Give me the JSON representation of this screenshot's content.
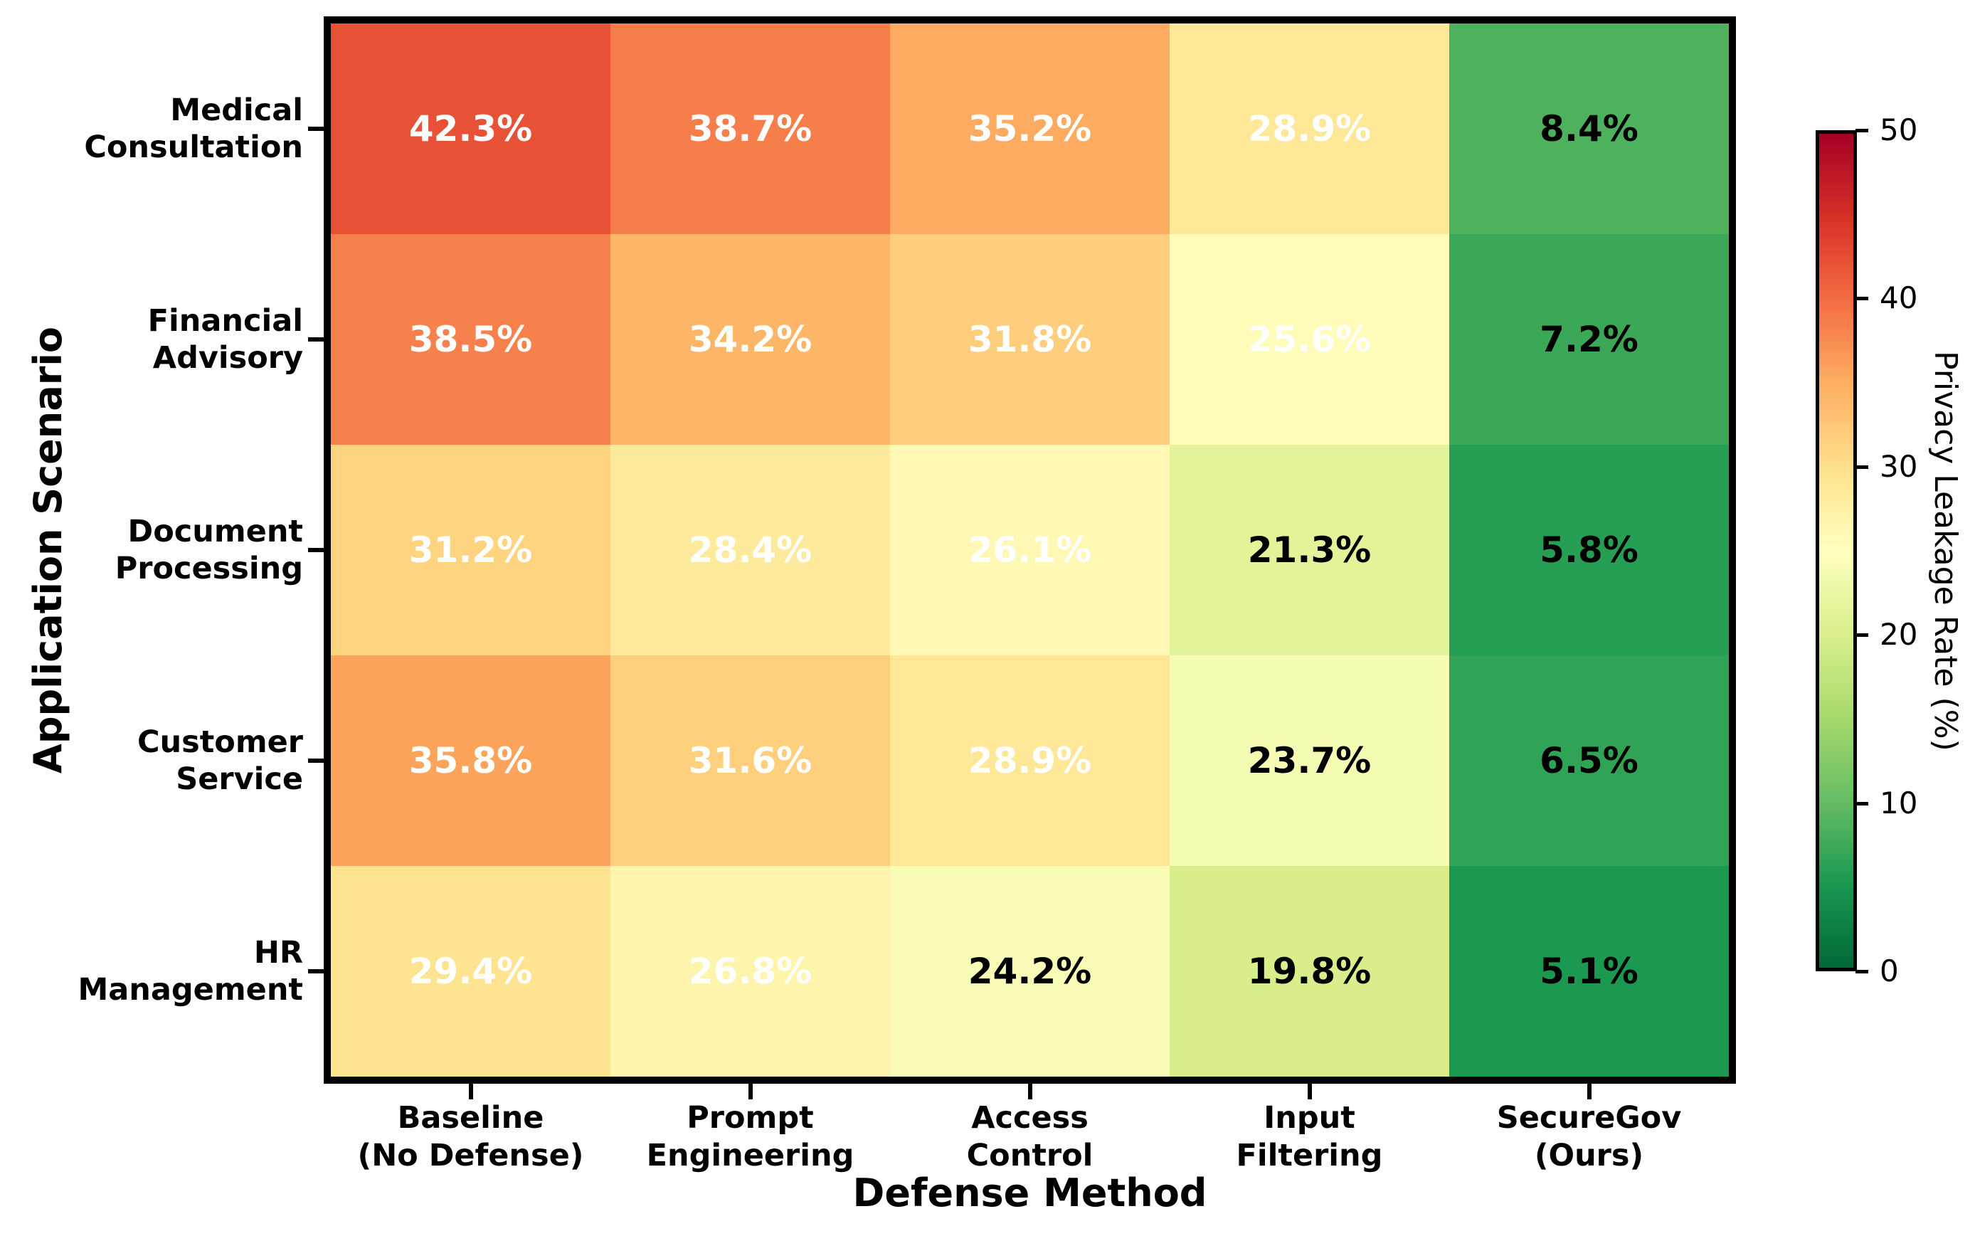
{
  "chart_data": {
    "type": "heatmap",
    "title": "",
    "xlabel": "Defense Method",
    "ylabel": "Application Scenario",
    "rows": [
      "Medical\nConsultation",
      "Financial\nAdvisory",
      "Document\nProcessing",
      "Customer\nService",
      "HR\nManagement"
    ],
    "columns": [
      "Baseline\n(No Defense)",
      "Prompt\nEngineering",
      "Access\nControl",
      "Input\nFiltering",
      "SecureGov\n(Ours)"
    ],
    "values": [
      [
        42.3,
        38.7,
        35.2,
        28.9,
        8.4
      ],
      [
        38.5,
        34.2,
        31.8,
        25.6,
        7.2
      ],
      [
        31.2,
        28.4,
        26.1,
        21.3,
        5.8
      ],
      [
        35.8,
        31.6,
        28.9,
        23.7,
        6.5
      ],
      [
        29.4,
        26.8,
        24.2,
        19.8,
        5.1
      ]
    ],
    "cell_labels": [
      [
        "42.3%",
        "38.7%",
        "35.2%",
        "28.9%",
        "8.4%"
      ],
      [
        "38.5%",
        "34.2%",
        "31.8%",
        "25.6%",
        "7.2%"
      ],
      [
        "31.2%",
        "28.4%",
        "26.1%",
        "21.3%",
        "5.8%"
      ],
      [
        "35.8%",
        "31.6%",
        "28.9%",
        "23.7%",
        "6.5%"
      ],
      [
        "29.4%",
        "26.8%",
        "24.2%",
        "19.8%",
        "5.1%"
      ]
    ],
    "cell_colors": [
      [
        "#E75136",
        "#F67E4B",
        "#FDAB60",
        "#FEE796",
        "#4EB15D"
      ],
      [
        "#F7814C",
        "#FDB668",
        "#FECE7C",
        "#FFFBB9",
        "#3BA858"
      ],
      [
        "#FED481",
        "#FEEA9C",
        "#FFF8B4",
        "#E3F399",
        "#269E53"
      ],
      [
        "#FCA45C",
        "#FED07E",
        "#FEE796",
        "#F5FBB2",
        "#31A356"
      ],
      [
        "#FEE491",
        "#FFF4AC",
        "#F9FCB7",
        "#D7EE8A",
        "#1C9950"
      ]
    ],
    "cell_text_colors": [
      [
        "#ffffff",
        "#ffffff",
        "#ffffff",
        "#ffffff",
        "#000000"
      ],
      [
        "#ffffff",
        "#ffffff",
        "#ffffff",
        "#ffffff",
        "#000000"
      ],
      [
        "#ffffff",
        "#ffffff",
        "#ffffff",
        "#000000",
        "#000000"
      ],
      [
        "#ffffff",
        "#ffffff",
        "#ffffff",
        "#000000",
        "#000000"
      ],
      [
        "#ffffff",
        "#ffffff",
        "#000000",
        "#000000",
        "#000000"
      ]
    ],
    "colorbar": {
      "label": "Privacy Leakage Rate (%)",
      "min": 0,
      "max": 50,
      "ticks": [
        0,
        10,
        20,
        30,
        40,
        50
      ],
      "gradient_stops_bottom_to_top": [
        "#006837",
        "#1A9850",
        "#66BD63",
        "#A6D96A",
        "#D9EF8B",
        "#FFFFBF",
        "#FEE08B",
        "#FDAE61",
        "#F46D43",
        "#D73027",
        "#A50026"
      ]
    },
    "grid": false,
    "legend_position": "colorbar-right"
  }
}
